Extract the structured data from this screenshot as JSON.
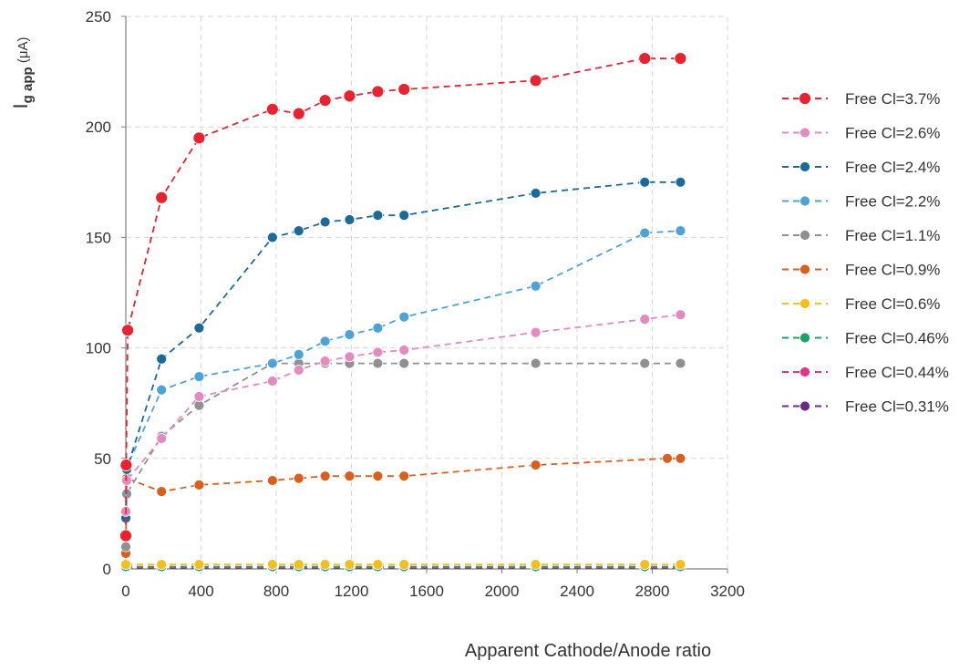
{
  "chart_data": {
    "type": "line",
    "title": "",
    "xlabel": "Apparent Cathode/Anode ratio",
    "ylabel_main": "I",
    "ylabel_sub": "g app",
    "ylabel_unit": " (μA)",
    "xlim": [
      0,
      3200
    ],
    "ylim": [
      0,
      250
    ],
    "xticks": [
      0,
      400,
      800,
      1200,
      1600,
      2000,
      2400,
      2800,
      3200
    ],
    "yticks": [
      0,
      50,
      100,
      150,
      200,
      250
    ],
    "grid": true,
    "legend_position": "right",
    "series": [
      {
        "name": "Free Cl=3.7%",
        "color": "#e8232f",
        "big": true,
        "x": [
          0,
          2,
          10,
          190,
          390,
          780,
          920,
          1060,
          1190,
          1340,
          1480,
          2180,
          2760,
          2950
        ],
        "y": [
          15,
          47,
          108,
          168,
          195,
          208,
          206,
          212,
          214,
          216,
          217,
          221,
          231,
          231
        ]
      },
      {
        "name": "Free Cl=2.6%",
        "color": "#e38ac0",
        "x": [
          0,
          5,
          190,
          390,
          780,
          920,
          1060,
          1190,
          1340,
          1480,
          2180,
          2760,
          2950
        ],
        "y": [
          26,
          40,
          59,
          78,
          85,
          90,
          94,
          96,
          98,
          99,
          107,
          113,
          115
        ]
      },
      {
        "name": "Free Cl=2.4%",
        "color": "#1a6a9a",
        "x": [
          0,
          5,
          190,
          390,
          780,
          920,
          1060,
          1190,
          1340,
          1480,
          2180,
          2760,
          2950
        ],
        "y": [
          23,
          45,
          95,
          109,
          150,
          153,
          157,
          158,
          160,
          160,
          170,
          175,
          175
        ]
      },
      {
        "name": "Free Cl=2.2%",
        "color": "#4da3d6",
        "x": [
          0,
          5,
          190,
          390,
          780,
          920,
          1060,
          1190,
          1340,
          1480,
          2180,
          2760,
          2950
        ],
        "y": [
          24,
          46,
          81,
          87,
          93,
          97,
          103,
          106,
          109,
          114,
          128,
          152,
          153
        ]
      },
      {
        "name": "Free Cl=1.1%",
        "color": "#909090",
        "x": [
          0,
          5,
          190,
          390,
          780,
          920,
          1060,
          1190,
          1340,
          1480,
          2180,
          2760,
          2950
        ],
        "y": [
          10,
          34,
          60,
          74,
          93,
          93,
          93,
          93,
          93,
          93,
          93,
          93,
          93
        ]
      },
      {
        "name": "Free Cl=0.9%",
        "color": "#d95f1e",
        "x": [
          0,
          5,
          190,
          390,
          780,
          920,
          1060,
          1190,
          1340,
          1480,
          2180,
          2880,
          2950
        ],
        "y": [
          7,
          41,
          35,
          38,
          40,
          41,
          42,
          42,
          42,
          42,
          47,
          50,
          50
        ]
      },
      {
        "name": "Free Cl=0.6%",
        "color": "#f2c01e",
        "x": [
          0,
          190,
          390,
          780,
          920,
          1060,
          1190,
          1340,
          1480,
          2180,
          2760,
          2950
        ],
        "y": [
          2,
          2,
          2,
          2,
          2,
          2,
          2,
          2,
          2,
          2,
          2,
          2
        ]
      },
      {
        "name": "Free Cl=0.46%",
        "color": "#1aa45c",
        "x": [
          0,
          190,
          390,
          780,
          920,
          1060,
          1190,
          1340,
          1480,
          2180,
          2760,
          2950
        ],
        "y": [
          1,
          1,
          1,
          1,
          1,
          1,
          1,
          1,
          1,
          1,
          1,
          1
        ]
      },
      {
        "name": "Free Cl=0.44%",
        "color": "#e0368a",
        "x": [
          0,
          190,
          390,
          780,
          920,
          1060,
          1190,
          1340,
          1480,
          2180,
          2760,
          2950
        ],
        "y": [
          0.8,
          0.8,
          0.8,
          0.8,
          0.8,
          0.8,
          0.8,
          0.8,
          0.8,
          0.8,
          0.8,
          0.8
        ]
      },
      {
        "name": "Free Cl=0.31%",
        "color": "#6a2a8a",
        "x": [
          0,
          190,
          390,
          780,
          920,
          1060,
          1190,
          1340,
          1480,
          2180,
          2760,
          2950
        ],
        "y": [
          0.5,
          0.5,
          0.5,
          0.5,
          0.5,
          0.5,
          0.5,
          0.5,
          0.5,
          0.5,
          0.5,
          0.5
        ]
      }
    ]
  }
}
